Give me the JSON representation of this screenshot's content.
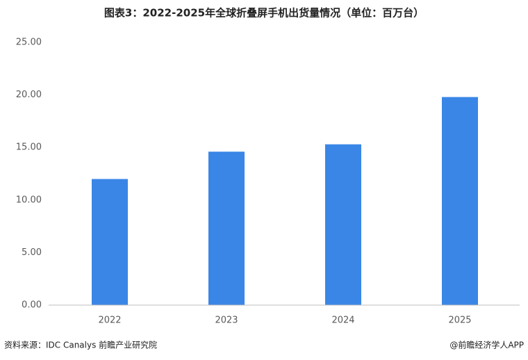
{
  "chart_data": {
    "type": "bar",
    "title": "图表3：2022-2025年全球折叠屏手机出货量情况（单位：百万台）",
    "categories": [
      "2022",
      "2023",
      "2024",
      "2025"
    ],
    "values": [
      12.0,
      14.6,
      15.3,
      19.8
    ],
    "color": "#3a86e6",
    "ylim": [
      0,
      25
    ],
    "yticks": [
      {
        "value": 0,
        "label": "0.00"
      },
      {
        "value": 5,
        "label": "5.00"
      },
      {
        "value": 10,
        "label": "10.00"
      },
      {
        "value": 15,
        "label": "15.00"
      },
      {
        "value": 20,
        "label": "20.00"
      },
      {
        "value": 25,
        "label": "25.00"
      }
    ],
    "grid": false,
    "source": "资料来源：IDC Canalys  前瞻产业研究院",
    "credit": "@前瞻经济学人APP"
  }
}
